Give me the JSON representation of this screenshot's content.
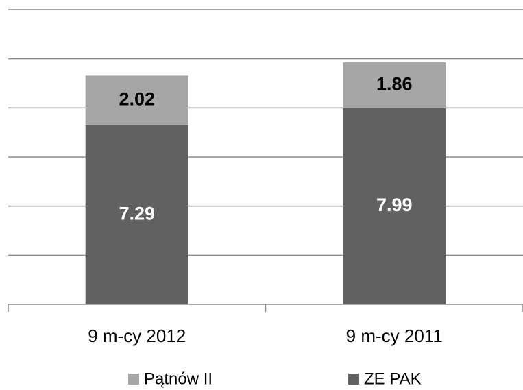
{
  "chart_data": {
    "type": "stacked-bar",
    "categories": [
      "9 m-cy 2012",
      "9 m-cy 2011"
    ],
    "series": [
      {
        "name": "Pątnów II",
        "color": "#a6a6a6",
        "label_color": "#000000",
        "values": [
          2.02,
          1.86
        ]
      },
      {
        "name": "ZE PAK",
        "color": "#616161",
        "label_color": "#ffffff",
        "values": [
          7.29,
          7.99
        ]
      }
    ],
    "ylim": [
      0,
      12
    ],
    "yticks": [
      0,
      2,
      4,
      6,
      8,
      10,
      12
    ],
    "grid": true,
    "legend": "bottom"
  }
}
